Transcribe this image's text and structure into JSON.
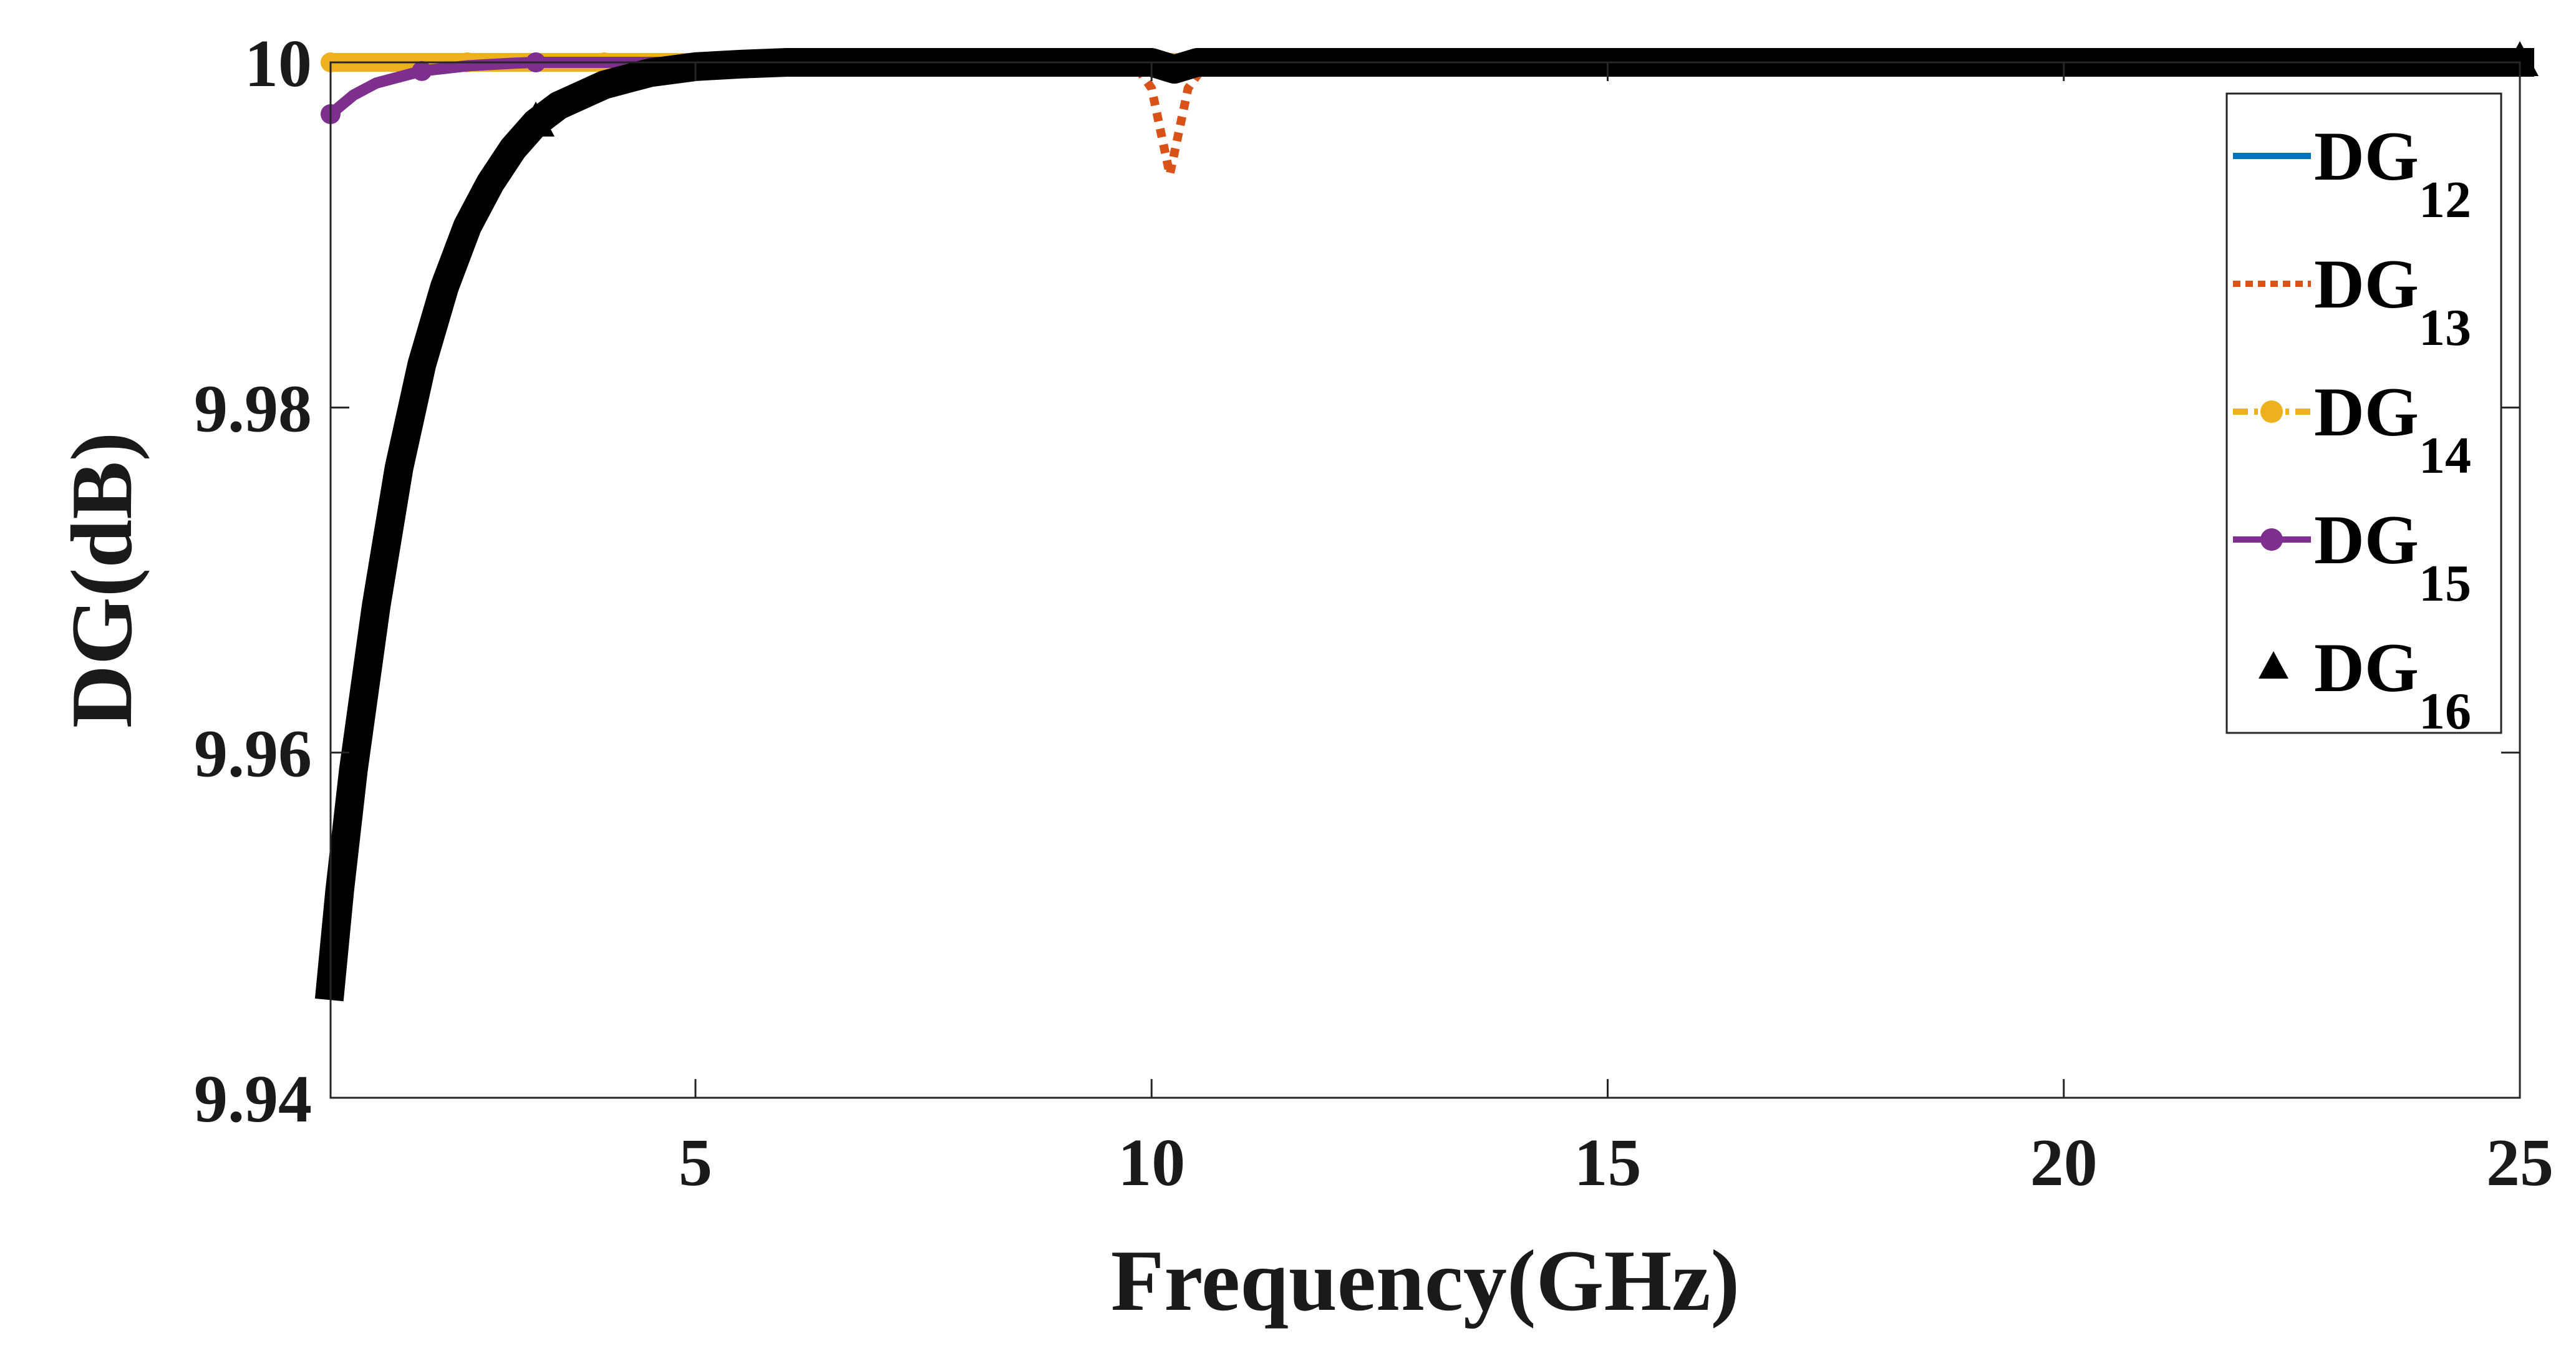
{
  "chart_data": {
    "type": "line",
    "xlabel": "Frequency(GHz)",
    "ylabel": "DG(dB)",
    "xlim": [
      1,
      25
    ],
    "ylim": [
      9.94,
      10
    ],
    "xticks": [
      5,
      10,
      15,
      20,
      25
    ],
    "xtick_labels": [
      "5",
      "10",
      "15",
      "20",
      "25"
    ],
    "yticks": [
      9.94,
      9.96,
      9.98,
      10
    ],
    "ytick_labels": [
      "9.94",
      "9.96",
      "9.98",
      "10"
    ],
    "grid": false,
    "legend_position": "top-right",
    "series": [
      {
        "name": "DG",
        "sub": "12",
        "color": "#0072BD",
        "style": "solid",
        "marker": "none",
        "x": [
          1,
          25
        ],
        "y": [
          10,
          10
        ]
      },
      {
        "name": "DG",
        "sub": "13",
        "color": "#D95319",
        "style": "dotted",
        "marker": "none",
        "x": [
          1,
          9.8,
          10.0,
          10.2,
          10.4,
          10.6,
          25
        ],
        "y": [
          10,
          10,
          9.9985,
          9.9935,
          9.9985,
          10,
          10
        ]
      },
      {
        "name": "DG",
        "sub": "14",
        "color": "#EDB120",
        "style": "dashdot",
        "marker": "circle",
        "x": [
          1,
          1.5,
          2,
          2.5,
          3,
          3.5,
          4,
          5,
          25
        ],
        "y": [
          10,
          10,
          10,
          10,
          10,
          10,
          10,
          10,
          10
        ]
      },
      {
        "name": "DG",
        "sub": "15",
        "color": "#7E2F8E",
        "style": "solid",
        "marker": "circle",
        "x": [
          1,
          1.25,
          1.5,
          2,
          2.5,
          3,
          3.25,
          4,
          5,
          25
        ],
        "y": [
          9.997,
          9.9981,
          9.9988,
          9.9995,
          9.9998,
          9.99995,
          10,
          10,
          10,
          10
        ]
      },
      {
        "name": "DG",
        "sub": "16",
        "color": "#000000",
        "style": "solid",
        "marker": "triangle",
        "x": [
          1,
          1.1,
          1.25,
          1.5,
          1.75,
          2,
          2.25,
          2.5,
          2.75,
          3,
          3.25,
          3.5,
          4,
          4.5,
          5,
          5.5,
          6,
          7,
          8,
          9,
          10,
          10.25,
          10.5,
          11,
          25
        ],
        "y": [
          9.9465,
          9.952,
          9.959,
          9.9685,
          9.9765,
          9.9825,
          9.987,
          9.9905,
          9.993,
          9.995,
          9.9965,
          9.9975,
          9.9987,
          9.9994,
          9.99975,
          9.9999,
          10,
          10,
          10,
          10,
          10,
          9.9996,
          10,
          10,
          10
        ]
      }
    ]
  }
}
